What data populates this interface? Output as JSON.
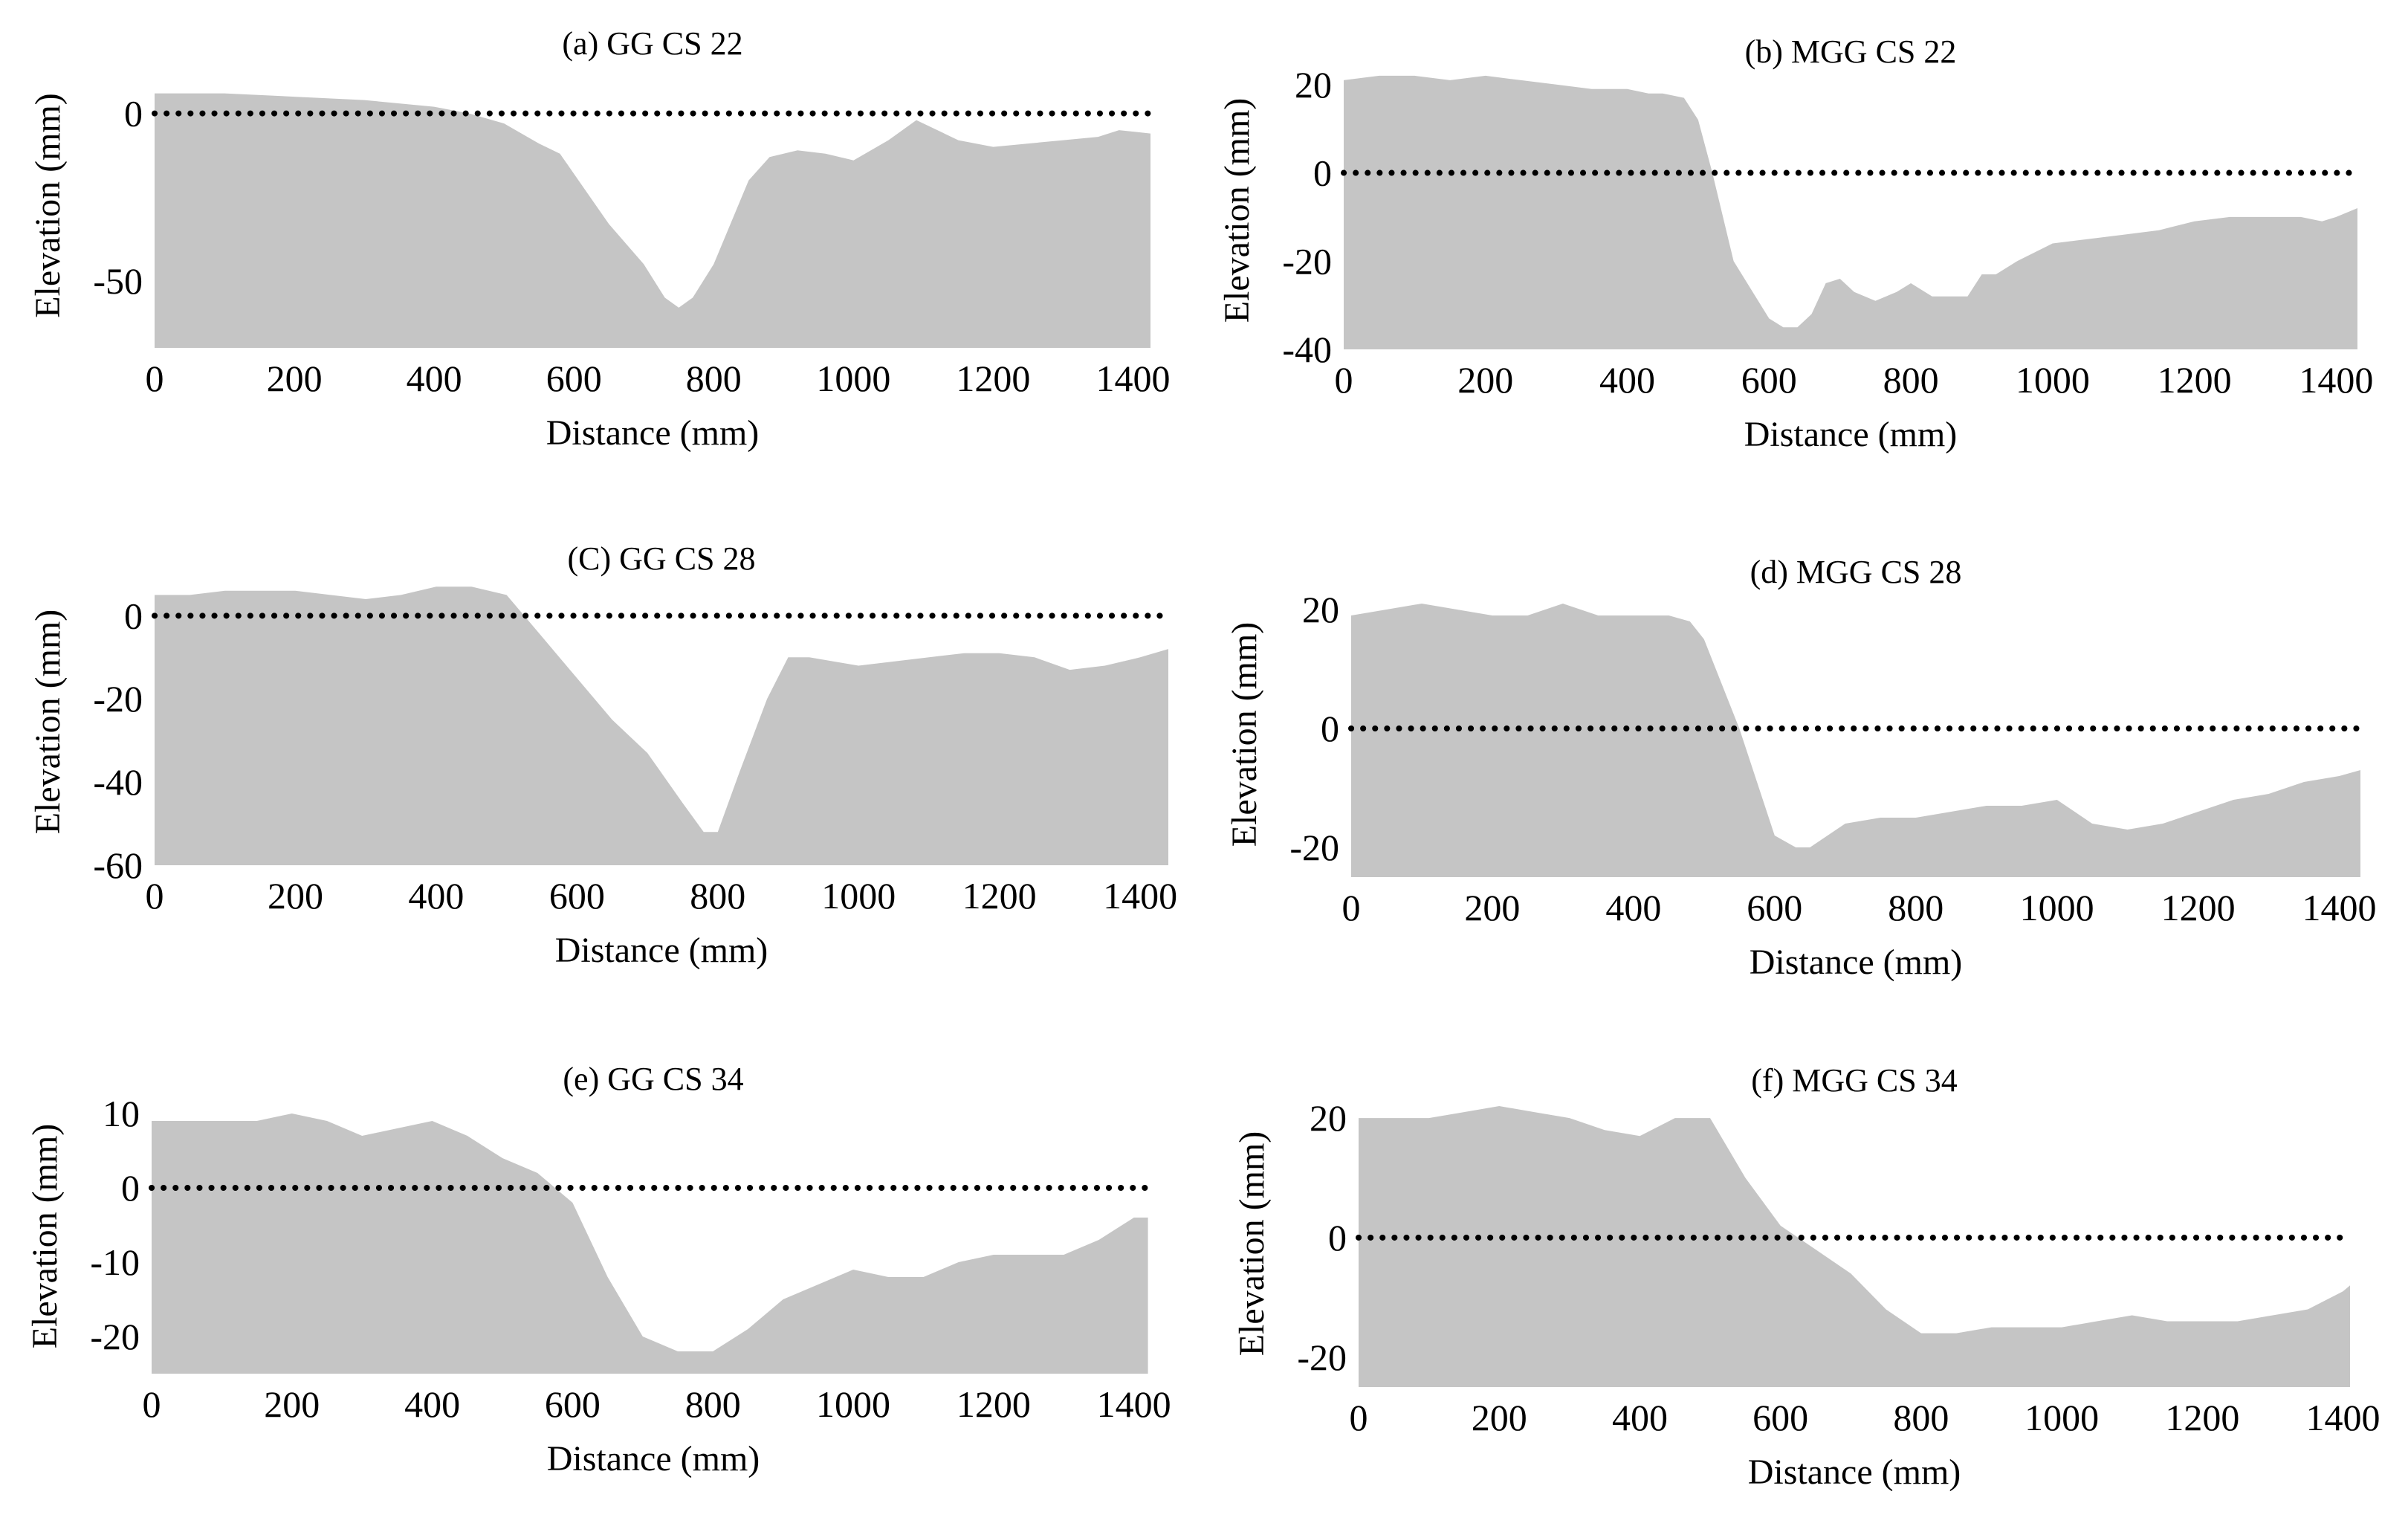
{
  "chart_data": [
    {
      "type": "area",
      "title": "(a) GG CS 22",
      "xlabel": "Distance (mm)",
      "ylabel": "Elevation (mm)",
      "xlim": [
        0,
        1425
      ],
      "ylim": [
        -70,
        15
      ],
      "xticks": [
        "0",
        "200",
        "400",
        "600",
        "800",
        "1000",
        "1200",
        "1400"
      ],
      "yticks": [
        "0",
        "-50"
      ],
      "ytick_values": [
        0,
        -50
      ],
      "reference_line": 0,
      "x": [
        0,
        50,
        100,
        200,
        300,
        400,
        450,
        500,
        550,
        580,
        600,
        650,
        700,
        730,
        750,
        770,
        800,
        850,
        880,
        920,
        960,
        1000,
        1050,
        1090,
        1100,
        1150,
        1200,
        1250,
        1300,
        1350,
        1380,
        1425
      ],
      "y": [
        6,
        6,
        6,
        5,
        4,
        2,
        0,
        -3,
        -9,
        -12,
        -18,
        -33,
        -45,
        -55,
        -58,
        -55,
        -45,
        -20,
        -13,
        -11,
        -12,
        -14,
        -8,
        -2,
        -3,
        -8,
        -10,
        -9,
        -8,
        -7,
        -5,
        -6
      ]
    },
    {
      "type": "area",
      "title": "(b)  MGG CS 22",
      "xlabel": "Distance (mm)",
      "ylabel": "Elevation (mm)",
      "xlim": [
        0,
        1430
      ],
      "ylim": [
        -40,
        23
      ],
      "xticks": [
        "0",
        "200",
        "400",
        "600",
        "800",
        "1000",
        "1200",
        "1400"
      ],
      "yticks": [
        "20",
        "0",
        "-20",
        "-40"
      ],
      "ytick_values": [
        20,
        0,
        -20,
        -40
      ],
      "reference_line": 0,
      "x": [
        0,
        50,
        100,
        150,
        200,
        250,
        300,
        350,
        400,
        430,
        450,
        480,
        500,
        520,
        550,
        600,
        620,
        640,
        660,
        680,
        700,
        720,
        750,
        780,
        800,
        830,
        850,
        880,
        900,
        920,
        950,
        1000,
        1050,
        1100,
        1150,
        1200,
        1250,
        1300,
        1350,
        1380,
        1400,
        1430
      ],
      "y": [
        21,
        22,
        22,
        21,
        22,
        21,
        20,
        19,
        19,
        18,
        18,
        17,
        12,
        0,
        -20,
        -33,
        -35,
        -35,
        -32,
        -25,
        -24,
        -27,
        -29,
        -27,
        -25,
        -28,
        -28,
        -28,
        -23,
        -23,
        -20,
        -16,
        -15,
        -14,
        -13,
        -11,
        -10,
        -10,
        -10,
        -11,
        -10,
        -8
      ]
    },
    {
      "type": "area",
      "title": "(C) GG CS 28",
      "xlabel": "Distance (mm)",
      "ylabel": "Elevation (mm)",
      "xlim": [
        0,
        1440
      ],
      "ylim": [
        -60,
        9
      ],
      "xticks": [
        "0",
        "200",
        "400",
        "600",
        "800",
        "1000",
        "1200",
        "1400"
      ],
      "yticks": [
        "0",
        "-20",
        "-40",
        "-60"
      ],
      "ytick_values": [
        0,
        -20,
        -40,
        -60
      ],
      "reference_line": 0,
      "x": [
        0,
        50,
        100,
        150,
        200,
        250,
        300,
        350,
        400,
        450,
        500,
        520,
        550,
        600,
        650,
        700,
        750,
        780,
        800,
        830,
        870,
        900,
        930,
        1000,
        1050,
        1100,
        1150,
        1200,
        1250,
        1300,
        1350,
        1400,
        1440
      ],
      "y": [
        5,
        5,
        6,
        6,
        6,
        5,
        4,
        5,
        7,
        7,
        5,
        1,
        -5,
        -15,
        -25,
        -33,
        -45,
        -52,
        -52,
        -38,
        -20,
        -10,
        -10,
        -12,
        -11,
        -10,
        -9,
        -9,
        -10,
        -13,
        -12,
        -10,
        -8
      ]
    },
    {
      "type": "area",
      "title": "(d) MGG CS 28",
      "xlabel": "Distance (mm)",
      "ylabel": "Elevation (mm)",
      "xlim": [
        0,
        1430
      ],
      "ylim": [
        -25,
        23
      ],
      "xticks": [
        "0",
        "200",
        "400",
        "600",
        "800",
        "1000",
        "1200",
        "1400"
      ],
      "yticks": [
        "20",
        "0",
        "-20"
      ],
      "ytick_values": [
        20,
        0,
        -20
      ],
      "reference_line": 0,
      "x": [
        0,
        50,
        100,
        150,
        200,
        250,
        300,
        350,
        400,
        450,
        480,
        500,
        550,
        600,
        630,
        650,
        700,
        750,
        800,
        850,
        900,
        950,
        1000,
        1050,
        1100,
        1150,
        1200,
        1250,
        1300,
        1350,
        1400,
        1430
      ],
      "y": [
        19,
        20,
        21,
        20,
        19,
        19,
        21,
        19,
        19,
        19,
        18,
        15,
        0,
        -18,
        -20,
        -20,
        -16,
        -15,
        -15,
        -14,
        -13,
        -13,
        -12,
        -16,
        -17,
        -16,
        -14,
        -12,
        -11,
        -9,
        -8,
        -7
      ]
    },
    {
      "type": "area",
      "title": "(e) GG CS 34",
      "xlabel": "Distance (mm)",
      "ylabel": "Elevation (mm)",
      "xlim": [
        0,
        1430
      ],
      "ylim": [
        -25,
        12
      ],
      "xticks": [
        "0",
        "200",
        "400",
        "600",
        "800",
        "1000",
        "1200",
        "1400"
      ],
      "yticks": [
        "10",
        "0",
        "-10",
        "-20"
      ],
      "ytick_values": [
        10,
        0,
        -10,
        -20
      ],
      "reference_line": 0,
      "x": [
        0,
        50,
        100,
        150,
        200,
        250,
        300,
        350,
        400,
        450,
        500,
        550,
        600,
        650,
        700,
        750,
        800,
        850,
        900,
        950,
        1000,
        1050,
        1100,
        1150,
        1200,
        1250,
        1300,
        1350,
        1400,
        1420
      ],
      "y": [
        9,
        9,
        9,
        9,
        10,
        9,
        7,
        8,
        9,
        7,
        4,
        2,
        -2,
        -12,
        -20,
        -22,
        -22,
        -19,
        -15,
        -13,
        -11,
        -12,
        -12,
        -10,
        -9,
        -9,
        -9,
        -7,
        -4,
        -4
      ]
    },
    {
      "type": "area",
      "title": "(f) MGG CS 34",
      "xlabel": "Distance (mm)",
      "ylabel": "Elevation (mm)",
      "xlim": [
        0,
        1410
      ],
      "ylim": [
        -25,
        23
      ],
      "xticks": [
        "0",
        "200",
        "400",
        "600",
        "800",
        "1000",
        "1200",
        "1400"
      ],
      "yticks": [
        "20",
        "0",
        "-20"
      ],
      "ytick_values": [
        20,
        0,
        -20
      ],
      "reference_line": 0,
      "x": [
        0,
        50,
        100,
        150,
        200,
        250,
        300,
        350,
        400,
        450,
        500,
        550,
        600,
        650,
        700,
        750,
        800,
        850,
        900,
        950,
        1000,
        1050,
        1100,
        1150,
        1200,
        1250,
        1300,
        1350,
        1400,
        1410
      ],
      "y": [
        20,
        20,
        20,
        21,
        22,
        21,
        20,
        18,
        17,
        20,
        20,
        10,
        2,
        -2,
        -6,
        -12,
        -16,
        -16,
        -15,
        -15,
        -15,
        -14,
        -13,
        -14,
        -14,
        -14,
        -13,
        -12,
        -9,
        -8
      ]
    }
  ]
}
